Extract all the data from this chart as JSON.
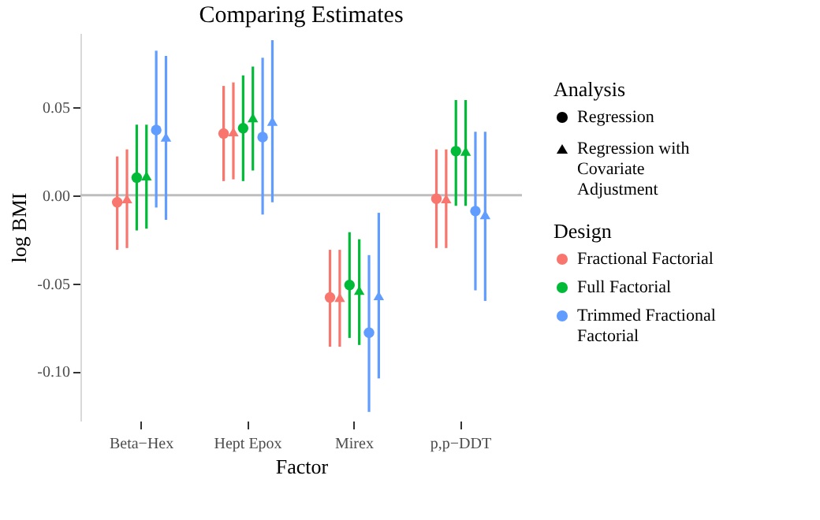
{
  "chart_data": {
    "type": "scatter",
    "title": "Comparing Estimates",
    "xlabel": "Factor",
    "ylabel": "log BMI",
    "legend_title": [
      "Analysis",
      "Design"
    ],
    "legend": "right",
    "annotations": [
      "Regression",
      "Regression with Covariate Adjustment"
    ],
    "categories": [
      "Beta−Hex",
      "Hept Epox",
      "Mirex",
      "p,p−DDT"
    ],
    "ylim": [
      -0.128,
      0.092
    ],
    "yticks": [
      {
        "value": -0.1,
        "label": "-0.10"
      },
      {
        "value": -0.05,
        "label": "-0.05"
      },
      {
        "value": 0,
        "label": "0.00"
      },
      {
        "value": 0.05,
        "label": "0.05"
      }
    ],
    "grid": false,
    "ref_lines": [
      {
        "axis": "y",
        "value": 0,
        "color": "#bebebe"
      }
    ],
    "series": [
      {
        "name": "Fractional Factorial",
        "color": "#f8766d",
        "marker": "circle",
        "values": [
          -0.004,
          0.035,
          -0.058,
          -0.002
        ],
        "errors": [
          [
            -0.031,
            0.022
          ],
          [
            0.008,
            0.062
          ],
          [
            -0.086,
            -0.031
          ],
          [
            -0.03,
            0.026
          ]
        ]
      },
      {
        "color": "#f8766d",
        "marker": "triangle",
        "values": [
          -0.002,
          0.036,
          -0.058,
          -0.002
        ],
        "errors": [
          [
            -0.03,
            0.026
          ],
          [
            0.009,
            0.064
          ],
          [
            -0.086,
            -0.031
          ],
          [
            -0.03,
            0.026
          ]
        ]
      },
      {
        "name": "Full Factorial",
        "color": "#00ba38",
        "marker": "circle",
        "values": [
          0.01,
          0.038,
          -0.051,
          0.025
        ],
        "errors": [
          [
            -0.02,
            0.04
          ],
          [
            0.008,
            0.068
          ],
          [
            -0.081,
            -0.021
          ],
          [
            -0.006,
            0.054
          ]
        ]
      },
      {
        "color": "#00ba38",
        "marker": "triangle",
        "values": [
          0.011,
          0.044,
          -0.054,
          0.025
        ],
        "errors": [
          [
            -0.019,
            0.04
          ],
          [
            0.014,
            0.073
          ],
          [
            -0.085,
            -0.025
          ],
          [
            -0.006,
            0.054
          ]
        ]
      },
      {
        "name": "Trimmed Fractional Factorial",
        "color": "#619cff",
        "marker": "circle",
        "values": [
          0.037,
          0.033,
          -0.078,
          -0.009
        ],
        "errors": [
          [
            -0.007,
            0.082
          ],
          [
            -0.011,
            0.078
          ],
          [
            -0.123,
            -0.034
          ],
          [
            -0.054,
            0.036
          ]
        ]
      },
      {
        "color": "#619cff",
        "marker": "triangle",
        "values": [
          0.033,
          0.042,
          -0.057,
          -0.011
        ],
        "errors": [
          [
            -0.014,
            0.079
          ],
          [
            -0.004,
            0.088
          ],
          [
            -0.104,
            -0.01
          ],
          [
            -0.06,
            0.036
          ]
        ]
      }
    ]
  }
}
